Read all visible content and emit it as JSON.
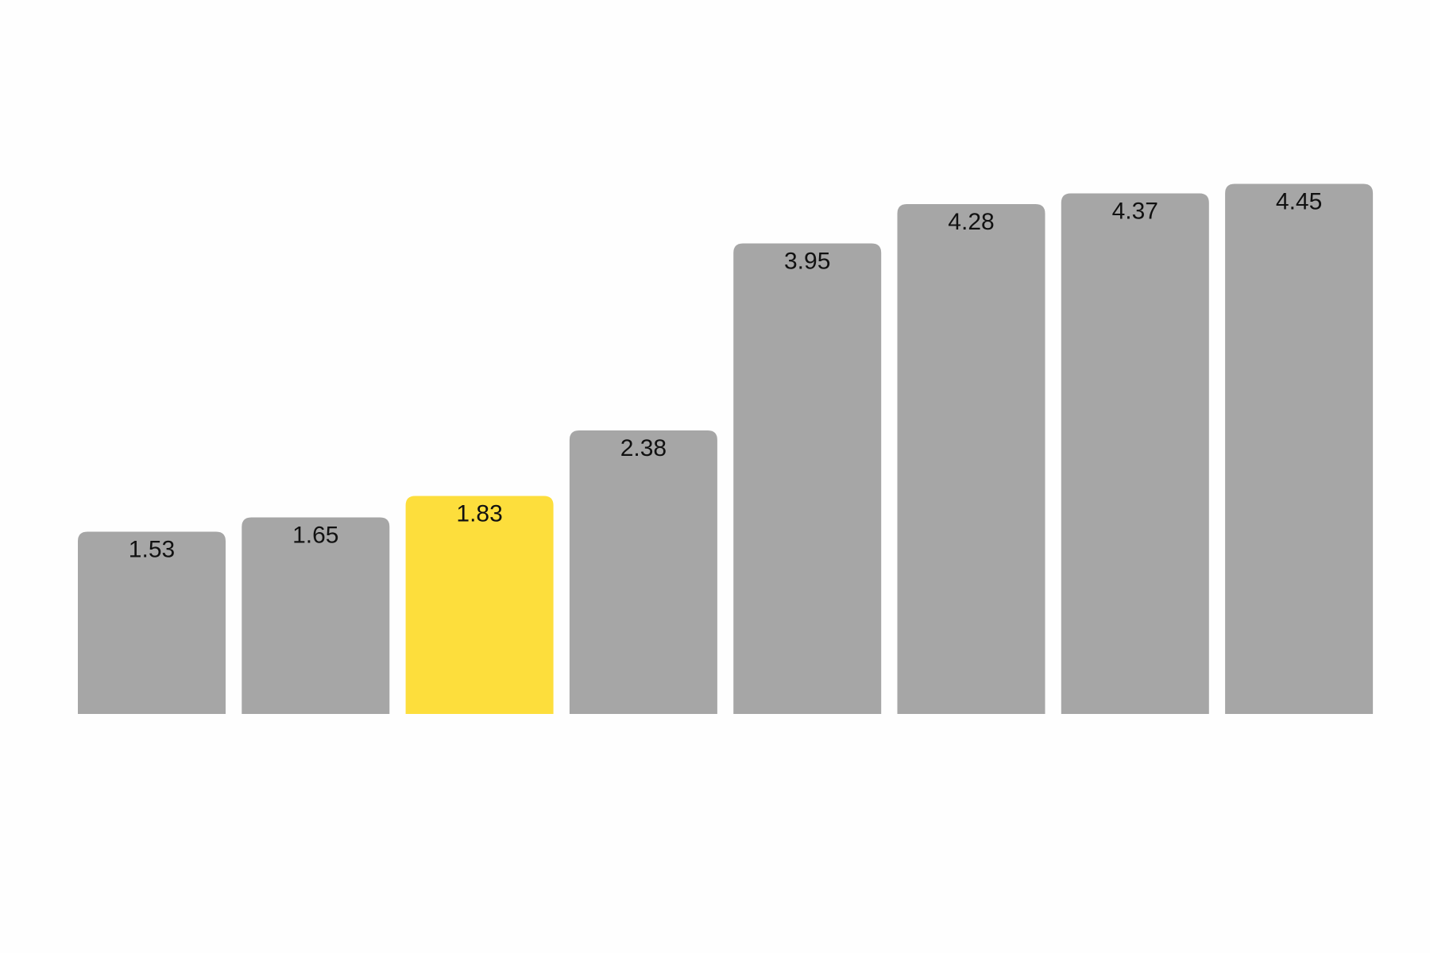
{
  "chart_data": {
    "type": "bar",
    "title": "",
    "xlabel": "",
    "ylabel": "",
    "categories": [
      "",
      "",
      "",
      "",
      "",
      "",
      "",
      ""
    ],
    "values": [
      1.53,
      1.65,
      1.83,
      2.38,
      3.95,
      4.28,
      4.37,
      4.45
    ],
    "labels": [
      "1.53",
      "1.65",
      "1.83",
      "2.38",
      "3.95",
      "4.28",
      "4.37",
      "4.45"
    ],
    "highlight_index": 2,
    "ylim": [
      0,
      6
    ],
    "grid": false,
    "colors": {
      "default": "#a6a6a6",
      "highlight": "#fdde3c",
      "label": "#111111"
    }
  }
}
